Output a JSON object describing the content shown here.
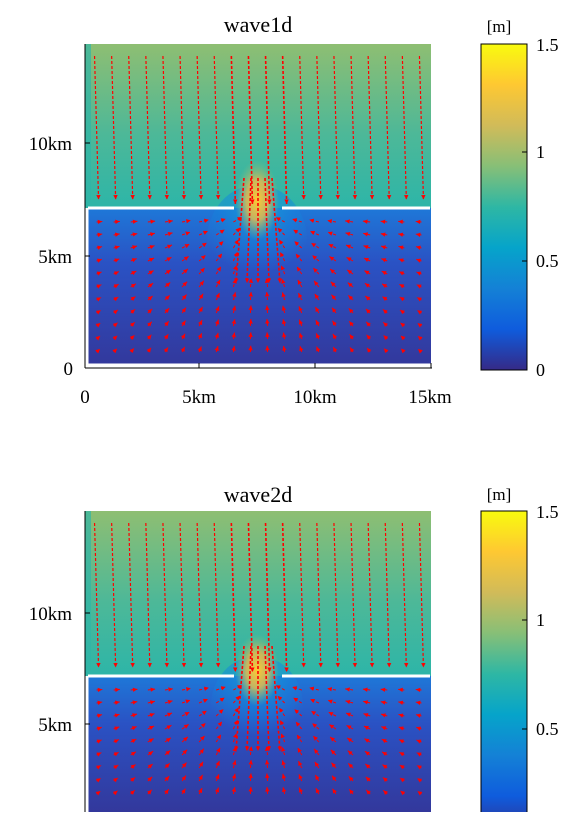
{
  "colormap": {
    "stops": [
      "#352a87",
      "#0f5cdd",
      "#1481d6",
      "#06a4ca",
      "#2eb7a4",
      "#87bf77",
      "#d1bb59",
      "#fec832",
      "#f9fb0e"
    ]
  },
  "arrow_color": "#ff0000",
  "wall_color": "#ffffff",
  "chart_data": [
    {
      "type": "heatmap",
      "title": "wave1d",
      "xlabel": "",
      "ylabel": "",
      "x_ticks": [
        "0",
        "5km",
        "10km",
        "15km"
      ],
      "y_ticks": [
        "0",
        "5km",
        "10km"
      ],
      "xlim": [
        0,
        15
      ],
      "ylim": [
        0,
        14
      ],
      "colorbar": {
        "unit": "[m]",
        "ticks": [
          "0",
          "0.5",
          "1",
          "1.5"
        ],
        "range": [
          0,
          1.5
        ]
      },
      "field": "water elevation with velocity vectors",
      "barrier_y": 7,
      "gap_x": [
        6.7,
        8.4
      ],
      "vector_field_type": "converging toward gap"
    },
    {
      "type": "heatmap",
      "title": "wave2d",
      "xlabel": "",
      "ylabel": "",
      "x_ticks": [],
      "y_ticks": [
        "5km",
        "10km"
      ],
      "xlim": [
        0,
        15
      ],
      "ylim": [
        0,
        14
      ],
      "colorbar": {
        "unit": "[m]",
        "ticks": [
          "0.5",
          "1",
          "1.5"
        ],
        "range": [
          0,
          1.5
        ]
      },
      "field": "water elevation with velocity vectors",
      "barrier_y": 7,
      "gap_x": [
        6.7,
        8.4
      ],
      "vector_field_type": "converging toward gap"
    }
  ]
}
